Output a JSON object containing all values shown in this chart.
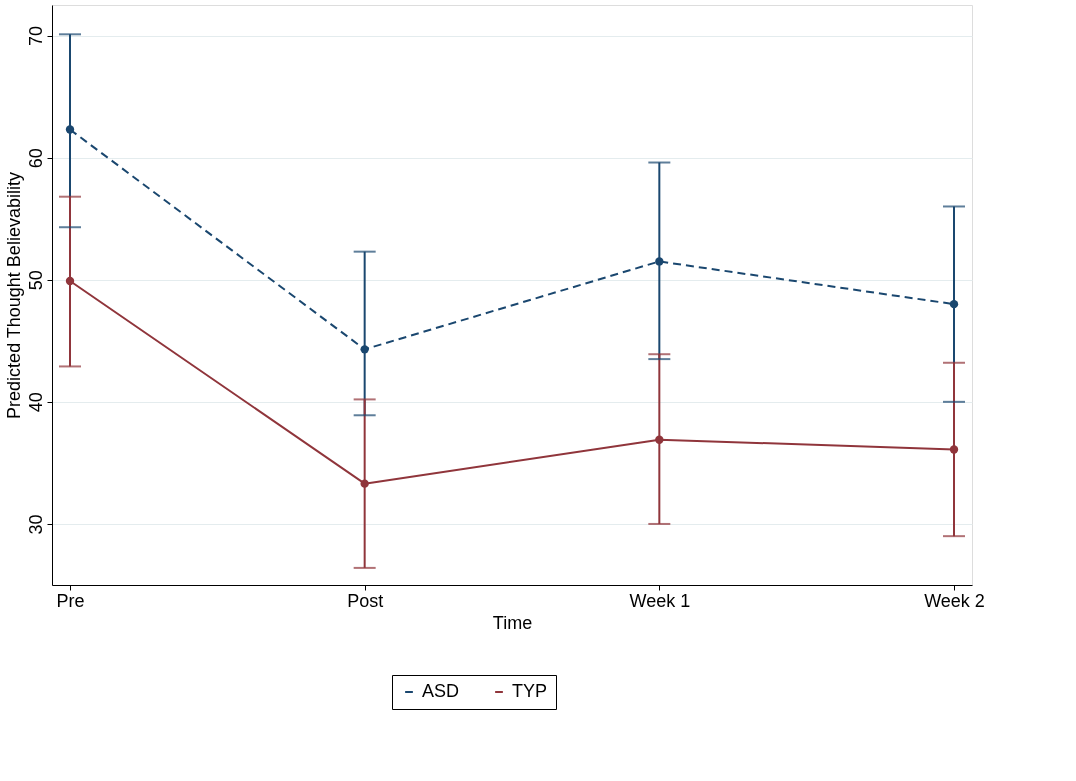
{
  "chart_data": {
    "type": "line",
    "xlabel": "Time",
    "ylabel": "Predicted Thought Believability",
    "categories": [
      "Pre",
      "Post",
      "Week 1",
      "Week 2"
    ],
    "series": [
      {
        "name": "ASD",
        "color": "#1a476f",
        "line_style": "dashed",
        "values": [
          62.3,
          44.3,
          51.5,
          48.0
        ],
        "errors": [
          [
            54.3,
            70.1
          ],
          [
            38.9,
            52.3
          ],
          [
            43.5,
            59.6
          ],
          [
            40.0,
            56.0
          ]
        ]
      },
      {
        "name": "TYP",
        "color": "#90353b",
        "line_style": "solid",
        "values": [
          49.9,
          33.3,
          36.9,
          36.1
        ],
        "errors": [
          [
            42.9,
            56.8
          ],
          [
            26.4,
            40.2
          ],
          [
            30.0,
            43.9
          ],
          [
            29.0,
            43.2
          ]
        ]
      }
    ],
    "ylim": [
      25,
      72.5
    ],
    "yticks": [
      30,
      40,
      50,
      60,
      70
    ],
    "grid": "y",
    "legend": "bottom",
    "marker": "circle"
  }
}
